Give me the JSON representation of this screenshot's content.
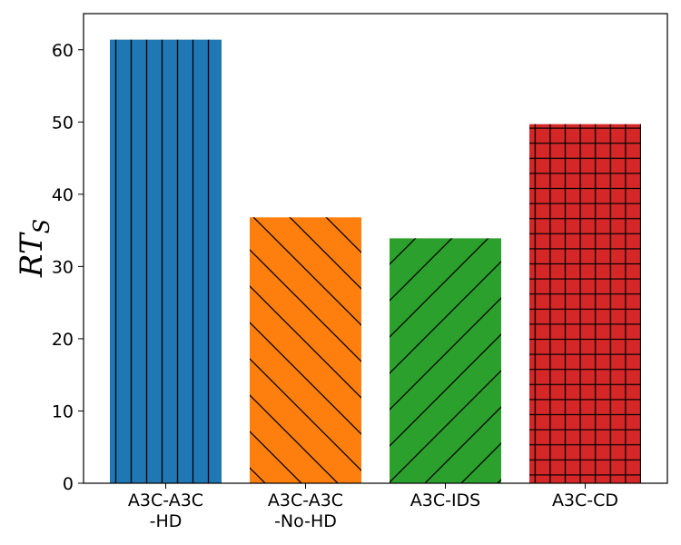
{
  "chart_data": {
    "type": "bar",
    "categories": [
      [
        "A3C-A3C",
        "-HD"
      ],
      [
        "A3C-A3C",
        "-No-HD"
      ],
      [
        "A3C-IDS"
      ],
      [
        "A3C-CD"
      ]
    ],
    "values": [
      61.4,
      36.8,
      33.9,
      49.7
    ],
    "colors": [
      "#1f77b4",
      "#ff7f0e",
      "#2ca02c",
      "#d62728"
    ],
    "hatches": [
      "vertical",
      "back-diagonal",
      "forward-diagonal",
      "grid"
    ],
    "ylabel_main": "RT",
    "ylabel_sub": "S",
    "ylim": [
      0,
      65
    ],
    "yticks": [
      0,
      10,
      20,
      30,
      40,
      50,
      60
    ],
    "title": "",
    "xlabel": "",
    "grid": false,
    "legend": false
  }
}
